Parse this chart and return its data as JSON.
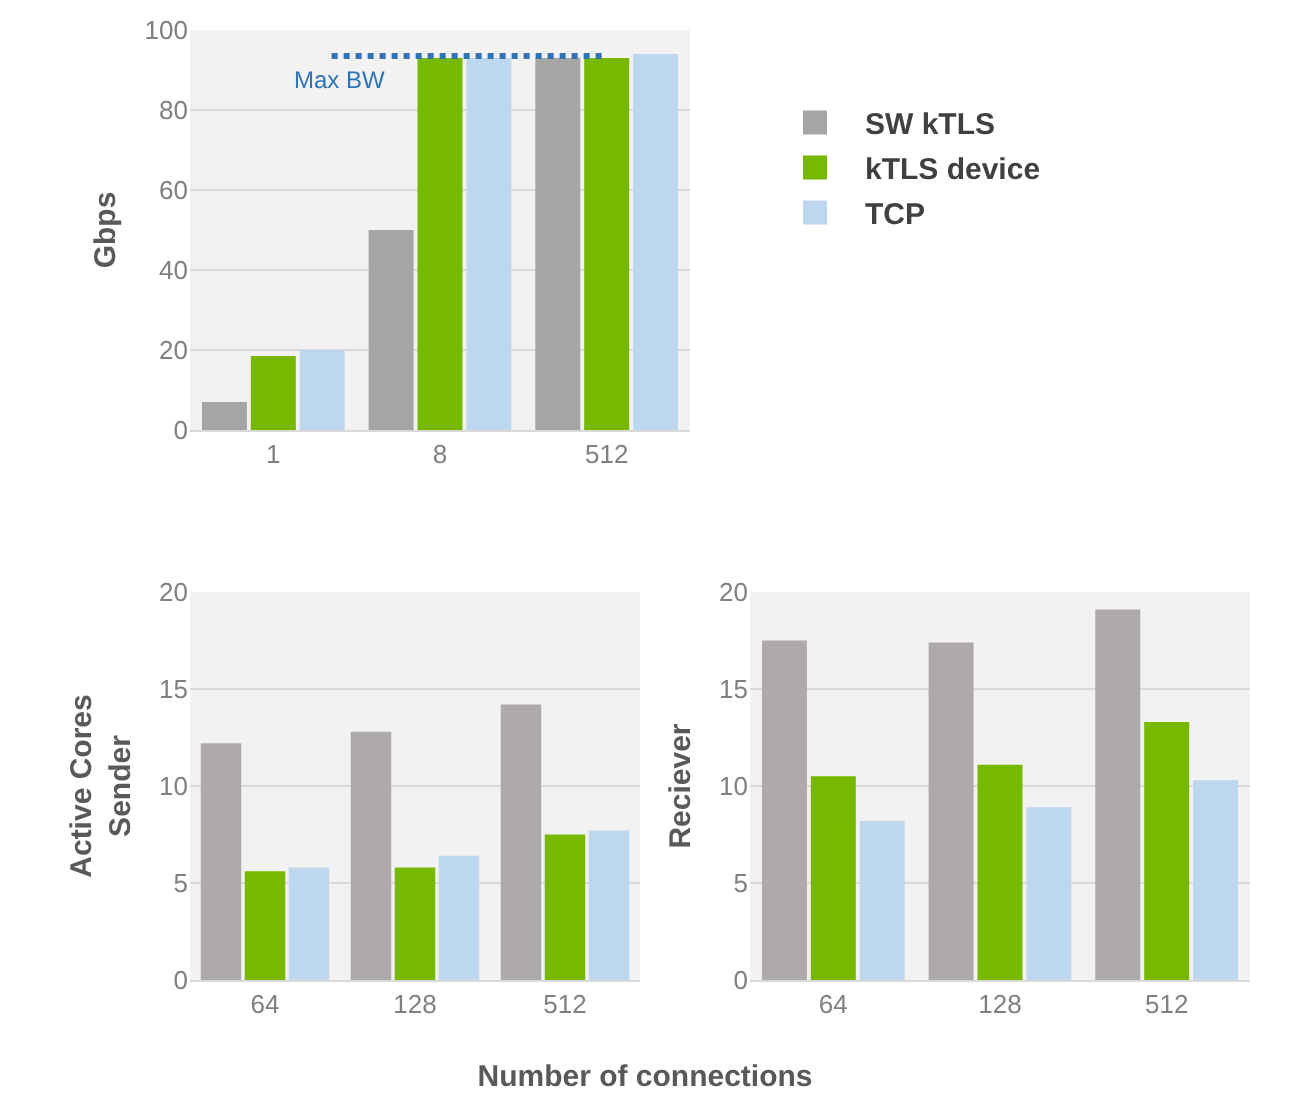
{
  "chart_data": [
    {
      "type": "bar",
      "ylabel": "Gbps",
      "categories": [
        "1",
        "8",
        "512"
      ],
      "ylim": [
        0,
        100
      ],
      "yticks": [
        0,
        20,
        40,
        60,
        80,
        100
      ],
      "grid": "y",
      "legend": "right",
      "series": [
        {
          "name": "SW kTLS",
          "color": "#a5a5a5",
          "values": [
            7,
            50,
            93
          ]
        },
        {
          "name": "kTLS device",
          "color": "#76b900",
          "values": [
            18.5,
            93,
            93
          ]
        },
        {
          "name": "TCP",
          "color": "#bdd7ee",
          "values": [
            20,
            93,
            94
          ]
        }
      ],
      "ref_lines": [
        {
          "axis": "y",
          "value": 93.5,
          "label": "Max BW",
          "color": "#2e75b6",
          "line_style": "dotted"
        }
      ]
    },
    {
      "type": "bar",
      "ylabel": "Active Cores\nSender",
      "xlabel": "Number of connections",
      "categories": [
        "64",
        "128",
        "512"
      ],
      "ylim": [
        0,
        20
      ],
      "yticks": [
        0,
        5,
        10,
        15,
        20
      ],
      "grid": "y",
      "series": [
        {
          "color": "#aeaaaa",
          "values": [
            12.2,
            12.8,
            14.2
          ]
        },
        {
          "color": "#76b900",
          "values": [
            5.6,
            5.8,
            7.5
          ]
        },
        {
          "color": "#bdd7ee",
          "values": [
            5.8,
            6.4,
            7.7
          ]
        }
      ]
    },
    {
      "type": "bar",
      "ylabel": "Reciever",
      "categories": [
        "64",
        "128",
        "512"
      ],
      "ylim": [
        0,
        20
      ],
      "yticks": [
        0,
        5,
        10,
        15,
        20
      ],
      "grid": "y",
      "series": [
        {
          "color": "#aeaaaa",
          "values": [
            17.5,
            17.4,
            19.1
          ]
        },
        {
          "color": "#76b900",
          "values": [
            10.5,
            11.1,
            13.3
          ]
        },
        {
          "color": "#bdd7ee",
          "values": [
            8.2,
            8.9,
            10.3
          ]
        }
      ]
    }
  ]
}
